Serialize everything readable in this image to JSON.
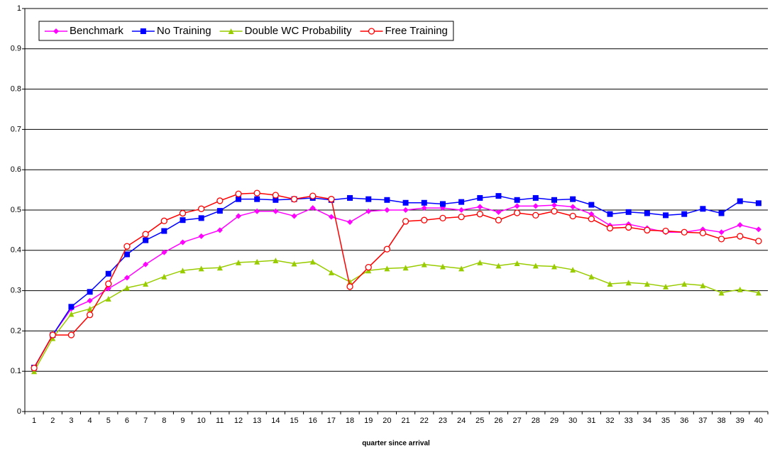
{
  "chart_data": {
    "type": "line",
    "x_label": "quarter since arrival",
    "categories": [
      "1",
      "2",
      "3",
      "4",
      "5",
      "6",
      "7",
      "8",
      "9",
      "10",
      "11",
      "12",
      "13",
      "14",
      "15",
      "16",
      "17",
      "18",
      "19",
      "20",
      "21",
      "22",
      "23",
      "24",
      "25",
      "26",
      "27",
      "28",
      "29",
      "30",
      "31",
      "32",
      "33",
      "34",
      "35",
      "36",
      "37",
      "38",
      "39",
      "40"
    ],
    "series": [
      {
        "name": "Benchmark",
        "color": "#ff00ff",
        "marker": "diamond",
        "values": [
          0.109,
          0.19,
          0.255,
          0.275,
          0.305,
          0.332,
          0.365,
          0.395,
          0.42,
          0.435,
          0.45,
          0.485,
          0.497,
          0.497,
          0.485,
          0.505,
          0.483,
          0.47,
          0.497,
          0.5,
          0.5,
          0.505,
          0.505,
          0.5,
          0.508,
          0.495,
          0.51,
          0.51,
          0.512,
          0.508,
          0.49,
          0.462,
          0.465,
          0.455,
          0.445,
          0.445,
          0.452,
          0.445,
          0.463,
          0.452
        ]
      },
      {
        "name": "No Training",
        "color": "#0000ff",
        "marker": "square",
        "values": [
          0.109,
          0.19,
          0.26,
          0.297,
          0.342,
          0.39,
          0.425,
          0.448,
          0.475,
          0.48,
          0.498,
          0.527,
          0.527,
          0.525,
          0.527,
          0.53,
          0.525,
          0.53,
          0.527,
          0.525,
          0.518,
          0.518,
          0.515,
          0.52,
          0.53,
          0.535,
          0.525,
          0.53,
          0.525,
          0.527,
          0.513,
          0.49,
          0.495,
          0.492,
          0.487,
          0.49,
          0.503,
          0.492,
          0.522,
          0.517
        ]
      },
      {
        "name": "Double WC Probability",
        "color": "#99cc00",
        "marker": "triangle",
        "values": [
          0.1,
          0.182,
          0.242,
          0.255,
          0.28,
          0.307,
          0.317,
          0.335,
          0.35,
          0.355,
          0.357,
          0.37,
          0.372,
          0.375,
          0.367,
          0.372,
          0.345,
          0.322,
          0.35,
          0.355,
          0.357,
          0.365,
          0.36,
          0.355,
          0.37,
          0.362,
          0.368,
          0.362,
          0.36,
          0.352,
          0.335,
          0.317,
          0.32,
          0.317,
          0.31,
          0.317,
          0.313,
          0.295,
          0.303,
          0.295
        ]
      },
      {
        "name": "Free Training",
        "color": "#ff0000",
        "marker": "circle",
        "values": [
          0.108,
          0.19,
          0.19,
          0.24,
          0.317,
          0.41,
          0.44,
          0.473,
          0.492,
          0.503,
          0.523,
          0.54,
          0.542,
          0.537,
          0.527,
          0.535,
          0.527,
          0.31,
          0.358,
          0.403,
          0.472,
          0.475,
          0.48,
          0.483,
          0.49,
          0.475,
          0.493,
          0.487,
          0.497,
          0.485,
          0.478,
          0.455,
          0.457,
          0.45,
          0.448,
          0.445,
          0.443,
          0.428,
          0.435,
          0.423
        ]
      }
    ],
    "ylim": [
      0,
      1
    ],
    "yticks": [
      0,
      0.1,
      0.2,
      0.3,
      0.4,
      0.5,
      0.6,
      0.7,
      0.8,
      0.9,
      1
    ],
    "grid": true,
    "legend": "top-left"
  }
}
